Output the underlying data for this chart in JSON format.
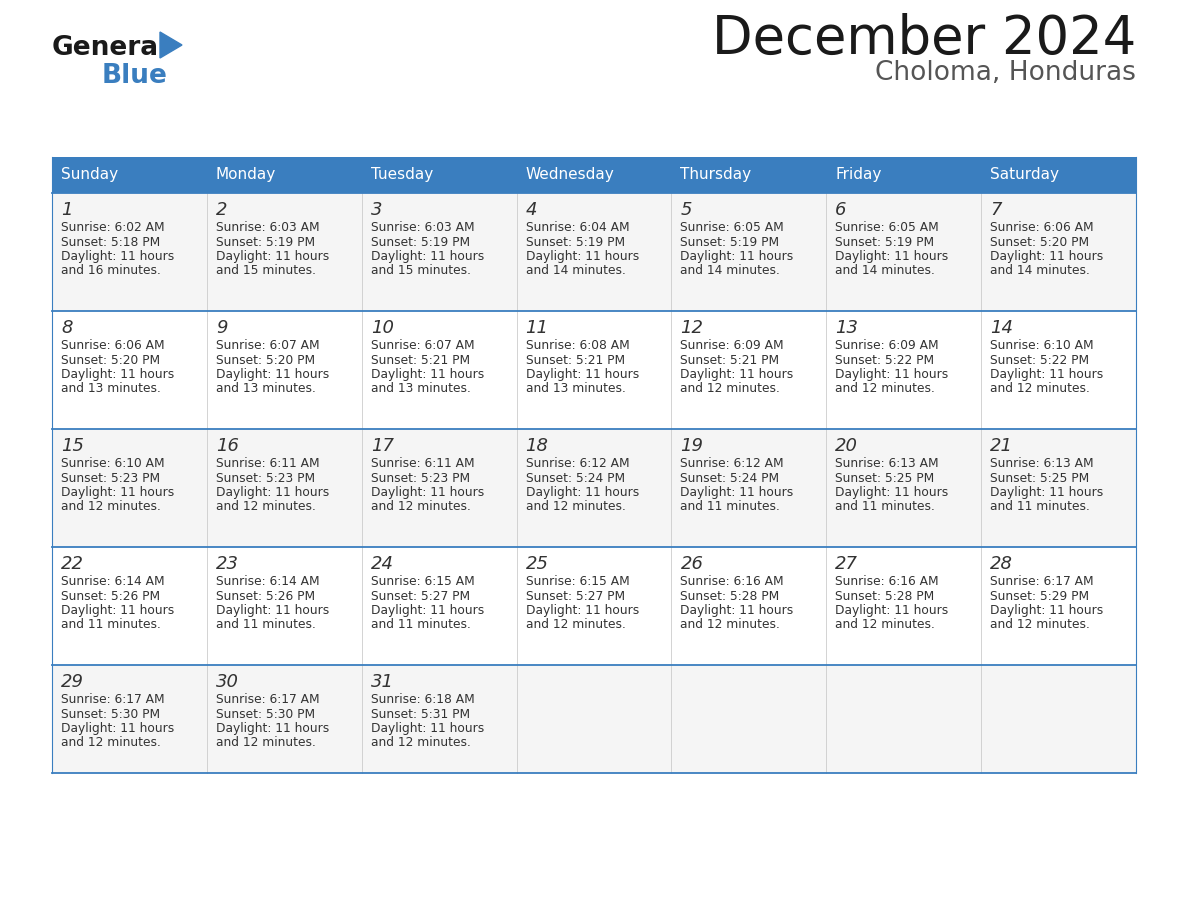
{
  "title": "December 2024",
  "subtitle": "Choloma, Honduras",
  "header_color": "#3a7ebf",
  "header_text_color": "#ffffff",
  "border_color": "#3a7ebf",
  "text_color": "#333333",
  "cell_bg_even": "#f5f5f5",
  "cell_bg_odd": "#ffffff",
  "days_of_week": [
    "Sunday",
    "Monday",
    "Tuesday",
    "Wednesday",
    "Thursday",
    "Friday",
    "Saturday"
  ],
  "calendar": [
    [
      {
        "day": "1",
        "sunrise": "6:02 AM",
        "sunset": "5:18 PM",
        "daylight_hours": 11,
        "daylight_minutes": 16
      },
      {
        "day": "2",
        "sunrise": "6:03 AM",
        "sunset": "5:19 PM",
        "daylight_hours": 11,
        "daylight_minutes": 15
      },
      {
        "day": "3",
        "sunrise": "6:03 AM",
        "sunset": "5:19 PM",
        "daylight_hours": 11,
        "daylight_minutes": 15
      },
      {
        "day": "4",
        "sunrise": "6:04 AM",
        "sunset": "5:19 PM",
        "daylight_hours": 11,
        "daylight_minutes": 14
      },
      {
        "day": "5",
        "sunrise": "6:05 AM",
        "sunset": "5:19 PM",
        "daylight_hours": 11,
        "daylight_minutes": 14
      },
      {
        "day": "6",
        "sunrise": "6:05 AM",
        "sunset": "5:19 PM",
        "daylight_hours": 11,
        "daylight_minutes": 14
      },
      {
        "day": "7",
        "sunrise": "6:06 AM",
        "sunset": "5:20 PM",
        "daylight_hours": 11,
        "daylight_minutes": 14
      }
    ],
    [
      {
        "day": "8",
        "sunrise": "6:06 AM",
        "sunset": "5:20 PM",
        "daylight_hours": 11,
        "daylight_minutes": 13
      },
      {
        "day": "9",
        "sunrise": "6:07 AM",
        "sunset": "5:20 PM",
        "daylight_hours": 11,
        "daylight_minutes": 13
      },
      {
        "day": "10",
        "sunrise": "6:07 AM",
        "sunset": "5:21 PM",
        "daylight_hours": 11,
        "daylight_minutes": 13
      },
      {
        "day": "11",
        "sunrise": "6:08 AM",
        "sunset": "5:21 PM",
        "daylight_hours": 11,
        "daylight_minutes": 13
      },
      {
        "day": "12",
        "sunrise": "6:09 AM",
        "sunset": "5:21 PM",
        "daylight_hours": 11,
        "daylight_minutes": 12
      },
      {
        "day": "13",
        "sunrise": "6:09 AM",
        "sunset": "5:22 PM",
        "daylight_hours": 11,
        "daylight_minutes": 12
      },
      {
        "day": "14",
        "sunrise": "6:10 AM",
        "sunset": "5:22 PM",
        "daylight_hours": 11,
        "daylight_minutes": 12
      }
    ],
    [
      {
        "day": "15",
        "sunrise": "6:10 AM",
        "sunset": "5:23 PM",
        "daylight_hours": 11,
        "daylight_minutes": 12
      },
      {
        "day": "16",
        "sunrise": "6:11 AM",
        "sunset": "5:23 PM",
        "daylight_hours": 11,
        "daylight_minutes": 12
      },
      {
        "day": "17",
        "sunrise": "6:11 AM",
        "sunset": "5:23 PM",
        "daylight_hours": 11,
        "daylight_minutes": 12
      },
      {
        "day": "18",
        "sunrise": "6:12 AM",
        "sunset": "5:24 PM",
        "daylight_hours": 11,
        "daylight_minutes": 12
      },
      {
        "day": "19",
        "sunrise": "6:12 AM",
        "sunset": "5:24 PM",
        "daylight_hours": 11,
        "daylight_minutes": 11
      },
      {
        "day": "20",
        "sunrise": "6:13 AM",
        "sunset": "5:25 PM",
        "daylight_hours": 11,
        "daylight_minutes": 11
      },
      {
        "day": "21",
        "sunrise": "6:13 AM",
        "sunset": "5:25 PM",
        "daylight_hours": 11,
        "daylight_minutes": 11
      }
    ],
    [
      {
        "day": "22",
        "sunrise": "6:14 AM",
        "sunset": "5:26 PM",
        "daylight_hours": 11,
        "daylight_minutes": 11
      },
      {
        "day": "23",
        "sunrise": "6:14 AM",
        "sunset": "5:26 PM",
        "daylight_hours": 11,
        "daylight_minutes": 11
      },
      {
        "day": "24",
        "sunrise": "6:15 AM",
        "sunset": "5:27 PM",
        "daylight_hours": 11,
        "daylight_minutes": 11
      },
      {
        "day": "25",
        "sunrise": "6:15 AM",
        "sunset": "5:27 PM",
        "daylight_hours": 11,
        "daylight_minutes": 12
      },
      {
        "day": "26",
        "sunrise": "6:16 AM",
        "sunset": "5:28 PM",
        "daylight_hours": 11,
        "daylight_minutes": 12
      },
      {
        "day": "27",
        "sunrise": "6:16 AM",
        "sunset": "5:28 PM",
        "daylight_hours": 11,
        "daylight_minutes": 12
      },
      {
        "day": "28",
        "sunrise": "6:17 AM",
        "sunset": "5:29 PM",
        "daylight_hours": 11,
        "daylight_minutes": 12
      }
    ],
    [
      {
        "day": "29",
        "sunrise": "6:17 AM",
        "sunset": "5:30 PM",
        "daylight_hours": 11,
        "daylight_minutes": 12
      },
      {
        "day": "30",
        "sunrise": "6:17 AM",
        "sunset": "5:30 PM",
        "daylight_hours": 11,
        "daylight_minutes": 12
      },
      {
        "day": "31",
        "sunrise": "6:18 AM",
        "sunset": "5:31 PM",
        "daylight_hours": 11,
        "daylight_minutes": 12
      },
      null,
      null,
      null,
      null
    ]
  ]
}
